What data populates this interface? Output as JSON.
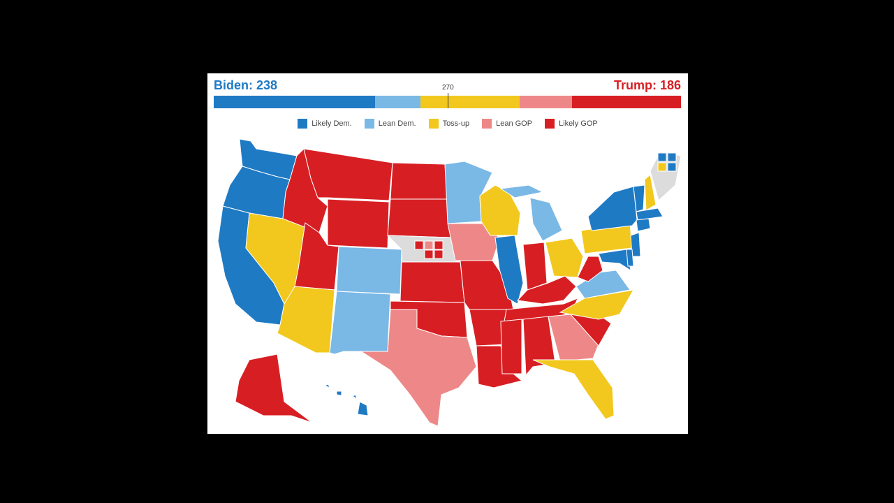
{
  "header": {
    "biden_label": "Biden: 238",
    "trump_label": "Trump: 186",
    "threshold_label": "270"
  },
  "colors": {
    "likely_dem": "#1f7ac4",
    "lean_dem": "#7ab8e6",
    "toss_up": "#f2c81e",
    "lean_gop": "#ee8888",
    "likely_gop": "#d71f23",
    "unassigned": "#dcdcdc"
  },
  "tally": [
    {
      "category": "likely_dem",
      "share": 0.345
    },
    {
      "category": "lean_dem",
      "share": 0.098
    },
    {
      "category": "toss_up",
      "share": 0.212
    },
    {
      "category": "lean_gop",
      "share": 0.112
    },
    {
      "category": "likely_gop",
      "share": 0.233
    }
  ],
  "legend": [
    {
      "category": "likely_dem",
      "label": "Likely Dem."
    },
    {
      "category": "lean_dem",
      "label": "Lean Dem."
    },
    {
      "category": "toss_up",
      "label": "Toss-up"
    },
    {
      "category": "lean_gop",
      "label": "Lean GOP"
    },
    {
      "category": "likely_gop",
      "label": "Likely GOP"
    }
  ],
  "states": {
    "WA": "likely_dem",
    "OR": "likely_dem",
    "CA": "likely_dem",
    "NV": "toss_up",
    "ID": "likely_gop",
    "MT": "likely_gop",
    "WY": "likely_gop",
    "UT": "likely_gop",
    "AZ": "toss_up",
    "CO": "lean_dem",
    "NM": "lean_dem",
    "ND": "likely_gop",
    "SD": "likely_gop",
    "NE": "unassigned",
    "KS": "likely_gop",
    "OK": "likely_gop",
    "TX": "lean_gop",
    "MN": "lean_dem",
    "IA": "lean_gop",
    "MO": "likely_gop",
    "AR": "likely_gop",
    "LA": "likely_gop",
    "WI": "toss_up",
    "IL": "likely_dem",
    "MI": "lean_dem",
    "IN": "likely_gop",
    "OH": "toss_up",
    "KY": "likely_gop",
    "TN": "likely_gop",
    "MS": "likely_gop",
    "AL": "likely_gop",
    "GA": "lean_gop",
    "FL": "toss_up",
    "SC": "likely_gop",
    "NC": "toss_up",
    "VA": "lean_dem",
    "WV": "likely_gop",
    "PA": "toss_up",
    "NY": "likely_dem",
    "VT": "likely_dem",
    "NH": "toss_up",
    "ME": "unassigned",
    "MA": "likely_dem",
    "CT": "likely_dem",
    "NJ": "likely_dem",
    "MD": "likely_dem",
    "DE": "likely_dem",
    "AK": "likely_gop",
    "HI": "likely_dem"
  },
  "split_districts": {
    "NE": [
      "likely_gop",
      "lean_gop",
      "likely_gop",
      "likely_gop",
      "likely_gop"
    ],
    "ME": [
      "likely_dem",
      "likely_dem",
      "toss_up",
      "likely_dem"
    ]
  }
}
